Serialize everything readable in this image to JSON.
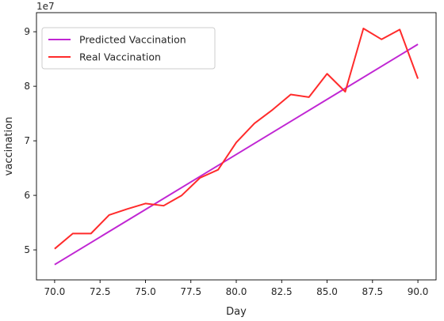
{
  "chart_data": {
    "type": "line",
    "xlabel": "Day",
    "ylabel": "vaccination",
    "y_offset_label": "1e7",
    "xlim": [
      69.0,
      91.0
    ],
    "ylim": [
      4.45,
      9.35
    ],
    "y_multiplier": 10000000,
    "x_ticks": [
      70.0,
      72.5,
      75.0,
      77.5,
      80.0,
      82.5,
      85.0,
      87.5,
      90.0
    ],
    "x_tick_labels": [
      "70.0",
      "72.5",
      "75.0",
      "77.5",
      "80.0",
      "82.5",
      "85.0",
      "87.5",
      "90.0"
    ],
    "y_ticks": [
      5,
      6,
      7,
      8,
      9
    ],
    "y_tick_labels": [
      "5",
      "6",
      "7",
      "8",
      "9"
    ],
    "grid": false,
    "legend_position": "upper-left",
    "series": [
      {
        "name": "Predicted Vaccination",
        "color": "#c026d3",
        "x": [
          70,
          90
        ],
        "y": [
          4.73,
          8.77
        ]
      },
      {
        "name": "Real Vaccination",
        "color": "#ff2b2b",
        "x": [
          70,
          71,
          72,
          73,
          74,
          75,
          76,
          77,
          78,
          79,
          80,
          81,
          82,
          83,
          84,
          85,
          86,
          87,
          88,
          89,
          90
        ],
        "y": [
          5.02,
          5.3,
          5.3,
          5.64,
          5.75,
          5.85,
          5.81,
          6.0,
          6.32,
          6.47,
          6.97,
          7.32,
          7.57,
          7.85,
          7.8,
          8.23,
          7.9,
          9.06,
          8.86,
          9.04,
          8.14
        ]
      }
    ]
  }
}
